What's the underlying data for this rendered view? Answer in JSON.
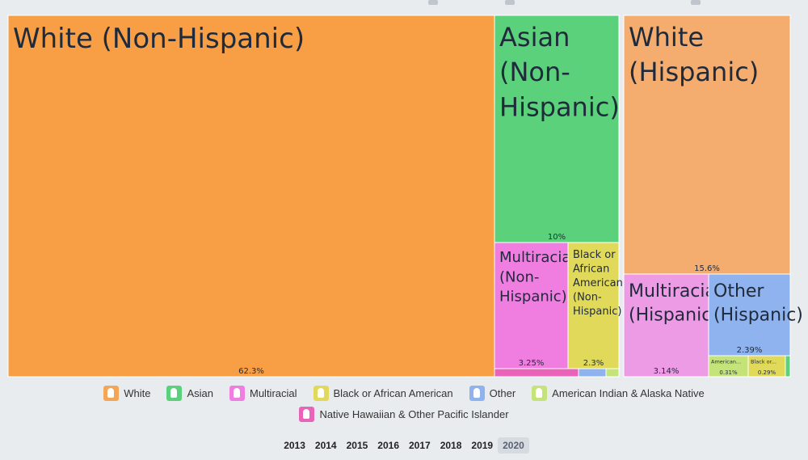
{
  "chart_data": {
    "type": "treemap",
    "groups": [
      {
        "name": "Non-Hispanic",
        "tiles": [
          {
            "label": "White (Non-Hispanic)",
            "value": 62.3,
            "value_label": "62.3%",
            "category": "White"
          },
          {
            "label": "Asian (Non-Hispanic)",
            "value": 10,
            "value_label": "10%",
            "category": "Asian"
          },
          {
            "label": "Multiracial (Non-Hispanic)",
            "value": 3.25,
            "value_label": "3.25%",
            "category": "Multiracial"
          },
          {
            "label": "Black or African American (Non-Hispanic)",
            "value": 2.3,
            "value_label": "2.3%",
            "category": "Black or African American"
          },
          {
            "label": "",
            "value": 1.3,
            "value_label": "",
            "category": "Native Hawaiian & Other Pacific Islander"
          },
          {
            "label": "",
            "value": 0.6,
            "value_label": "",
            "category": "Other"
          },
          {
            "label": "",
            "value": 0.25,
            "value_label": "",
            "category": "American Indian & Alaska Native"
          }
        ]
      },
      {
        "name": "Hispanic",
        "tiles": [
          {
            "label": "White (Hispanic)",
            "value": 15.6,
            "value_label": "15.6%",
            "category": "White"
          },
          {
            "label": "Multiracial (Hispanic)",
            "value": 3.14,
            "value_label": "3.14%",
            "category": "Multiracial"
          },
          {
            "label": "Other (Hispanic)",
            "value": 2.39,
            "value_label": "2.39%",
            "category": "Other"
          },
          {
            "label": "American...",
            "value": 0.31,
            "value_label": "0.31%",
            "category": "American Indian & Alaska Native"
          },
          {
            "label": "Black or...",
            "value": 0.29,
            "value_label": "0.29%",
            "category": "Black or African American"
          },
          {
            "label": "",
            "value": 0.05,
            "value_label": "",
            "category": "Asian"
          }
        ]
      }
    ]
  },
  "legend": {
    "items": [
      {
        "label": "White",
        "color": "#f5a556"
      },
      {
        "label": "Asian",
        "color": "#5cd17b"
      },
      {
        "label": "Multiracial",
        "color": "#f07ee0"
      },
      {
        "label": "Black or African American",
        "color": "#e1d95a"
      },
      {
        "label": "Other",
        "color": "#8fb3ee"
      },
      {
        "label": "American Indian & Alaska Native",
        "color": "#c4e47a"
      },
      {
        "label": "Native Hawaiian & Other Pacific Islander",
        "color": "#e963b8"
      }
    ]
  },
  "colors": {
    "White (Non-Hispanic)": "#f89f45",
    "White (Hispanic)": "#f4ad6e",
    "Asian": "#5cd17b",
    "Multiracial (Non-Hispanic)": "#f07ee0",
    "Multiracial (Hispanic)": "#ee9be6",
    "Black or African American": "#e1d95a",
    "Other": "#8fb3ee",
    "American Indian & Alaska Native": "#c4e47a",
    "Native Hawaiian & Other Pacific Islander": "#e963b8"
  },
  "years": {
    "items": [
      "2013",
      "2014",
      "2015",
      "2016",
      "2017",
      "2018",
      "2019",
      "2020"
    ],
    "selected": "2020"
  }
}
